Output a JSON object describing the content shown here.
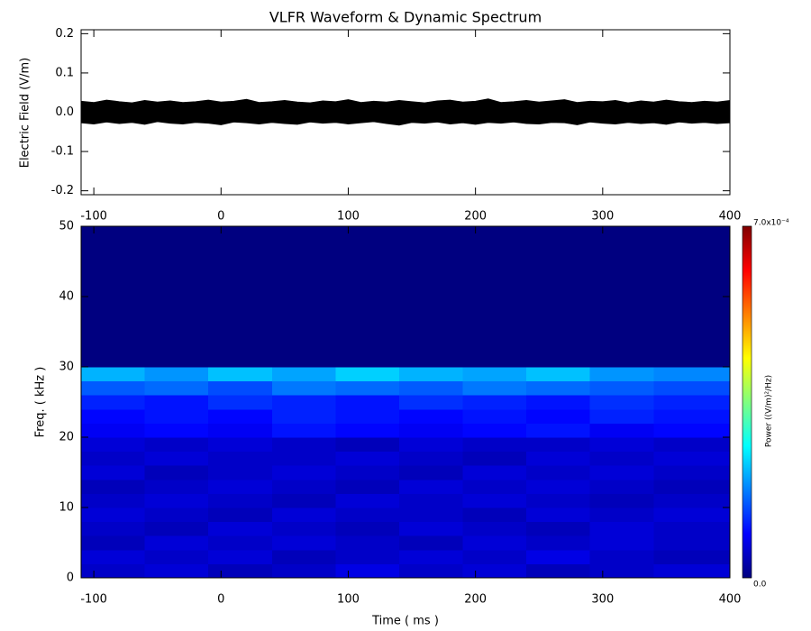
{
  "chart_data": [
    {
      "type": "band",
      "title": "VLFR Waveform & Dynamic Spectrum",
      "ylabel": "Electric Field  (V/m)",
      "color": "#000000",
      "x": [
        -110,
        -100,
        -90,
        -80,
        -70,
        -60,
        -50,
        -40,
        -30,
        -20,
        -10,
        0,
        10,
        20,
        30,
        40,
        50,
        60,
        70,
        80,
        90,
        100,
        110,
        120,
        130,
        140,
        150,
        160,
        170,
        180,
        190,
        200,
        210,
        220,
        230,
        240,
        250,
        260,
        270,
        280,
        290,
        300,
        310,
        320,
        330,
        340,
        350,
        360,
        370,
        380,
        390,
        400
      ],
      "upper": [
        0.028,
        0.025,
        0.031,
        0.027,
        0.024,
        0.03,
        0.026,
        0.029,
        0.025,
        0.027,
        0.031,
        0.026,
        0.028,
        0.033,
        0.025,
        0.027,
        0.03,
        0.026,
        0.024,
        0.029,
        0.027,
        0.032,
        0.025,
        0.028,
        0.026,
        0.03,
        0.027,
        0.024,
        0.029,
        0.031,
        0.026,
        0.028,
        0.034,
        0.025,
        0.027,
        0.03,
        0.026,
        0.029,
        0.032,
        0.025,
        0.028,
        0.027,
        0.03,
        0.024,
        0.029,
        0.026,
        0.031,
        0.027,
        0.025,
        0.028,
        0.026,
        0.03
      ],
      "lower": [
        -0.027,
        -0.03,
        -0.025,
        -0.029,
        -0.026,
        -0.031,
        -0.024,
        -0.028,
        -0.03,
        -0.026,
        -0.028,
        -0.032,
        -0.025,
        -0.027,
        -0.03,
        -0.026,
        -0.029,
        -0.031,
        -0.025,
        -0.028,
        -0.026,
        -0.03,
        -0.027,
        -0.024,
        -0.029,
        -0.033,
        -0.026,
        -0.028,
        -0.025,
        -0.03,
        -0.027,
        -0.031,
        -0.026,
        -0.028,
        -0.025,
        -0.029,
        -0.03,
        -0.026,
        -0.027,
        -0.032,
        -0.025,
        -0.028,
        -0.03,
        -0.026,
        -0.029,
        -0.027,
        -0.031,
        -0.025,
        -0.028,
        -0.026,
        -0.029,
        -0.027
      ],
      "xlim": [
        -110,
        400
      ],
      "ylim": [
        -0.21,
        0.21
      ],
      "xticks": [
        -100,
        0,
        100,
        200,
        300,
        400
      ],
      "yticks": [
        -0.2,
        -0.1,
        {
          "value": 0,
          "label": "0.0"
        },
        0.1,
        0.2
      ]
    },
    {
      "type": "heatmap",
      "xlabel": "Time ( ms )",
      "ylabel": "Freq. ( kHz )",
      "colormap": "jet",
      "colorbar_label": "Power   ((V/m)²/Hz)",
      "xbins": [
        -110,
        -60,
        -10,
        40,
        90,
        140,
        190,
        240,
        290,
        340,
        400
      ],
      "ybins": [
        0,
        2,
        4,
        6,
        8,
        10,
        12,
        14,
        16,
        18,
        20,
        22,
        24,
        26,
        28,
        30,
        50
      ],
      "z": [
        [
          5e-05,
          6e-05,
          4e-05,
          5e-05,
          7e-05,
          5e-05,
          6e-05,
          4e-05,
          5e-05,
          6e-05
        ],
        [
          6e-05,
          5e-05,
          6e-05,
          4e-05,
          5e-05,
          6e-05,
          5e-05,
          7e-05,
          5e-05,
          4e-05
        ],
        [
          4e-05,
          6e-05,
          5e-05,
          6e-05,
          5e-05,
          4e-05,
          6e-05,
          5e-05,
          6e-05,
          5e-05
        ],
        [
          5e-05,
          4e-05,
          6e-05,
          5e-05,
          4e-05,
          6e-05,
          5e-05,
          4e-05,
          6e-05,
          5e-05
        ],
        [
          6e-05,
          5e-05,
          4e-05,
          6e-05,
          5e-05,
          5e-05,
          4e-05,
          6e-05,
          5e-05,
          6e-05
        ],
        [
          5e-05,
          6e-05,
          5e-05,
          4e-05,
          6e-05,
          5e-05,
          6e-05,
          5e-05,
          4e-05,
          5e-05
        ],
        [
          4e-05,
          5e-05,
          6e-05,
          5e-05,
          4e-05,
          6e-05,
          5e-05,
          6e-05,
          5e-05,
          4e-05
        ],
        [
          6e-05,
          4e-05,
          5e-05,
          6e-05,
          5e-05,
          4e-05,
          6e-05,
          5e-05,
          6e-05,
          5e-05
        ],
        [
          5e-05,
          6e-05,
          5e-05,
          5e-05,
          6e-05,
          5e-05,
          4e-05,
          6e-05,
          5e-05,
          6e-05
        ],
        [
          6e-05,
          5e-05,
          6e-05,
          5e-05,
          4e-05,
          6e-05,
          5e-05,
          5e-05,
          6e-05,
          5e-05
        ],
        [
          8e-05,
          9e-05,
          8e-05,
          0.0001,
          9e-05,
          8e-05,
          9e-05,
          0.0001,
          8e-05,
          9e-05
        ],
        [
          9e-05,
          0.0001,
          9e-05,
          0.00011,
          0.0001,
          9e-05,
          0.0001,
          9e-05,
          0.00011,
          0.0001
        ],
        [
          0.00011,
          0.0001,
          0.00012,
          0.00011,
          0.0001,
          0.00012,
          0.00011,
          0.0001,
          0.00012,
          0.00011
        ],
        [
          0.00015,
          0.00016,
          0.00014,
          0.00017,
          0.00016,
          0.00015,
          0.00017,
          0.00016,
          0.00015,
          0.00014
        ],
        [
          0.00021,
          0.00019,
          0.00022,
          0.0002,
          0.00023,
          0.00021,
          0.0002,
          0.00022,
          0.00019,
          0.00018
        ],
        [
          0,
          0,
          0,
          0,
          0,
          0,
          0,
          0,
          0,
          0
        ]
      ],
      "xlim": [
        -110,
        400
      ],
      "ylim": [
        0,
        50
      ],
      "xticks": [
        -100,
        0,
        100,
        200,
        300,
        400
      ],
      "yticks": [
        0,
        10,
        20,
        30,
        40,
        50
      ],
      "zlim": [
        0,
        0.0007
      ],
      "zticks": [
        {
          "value": 0,
          "label": "0.0"
        },
        {
          "value": 0.0007,
          "label": "7.0x10⁻⁴"
        }
      ]
    }
  ]
}
